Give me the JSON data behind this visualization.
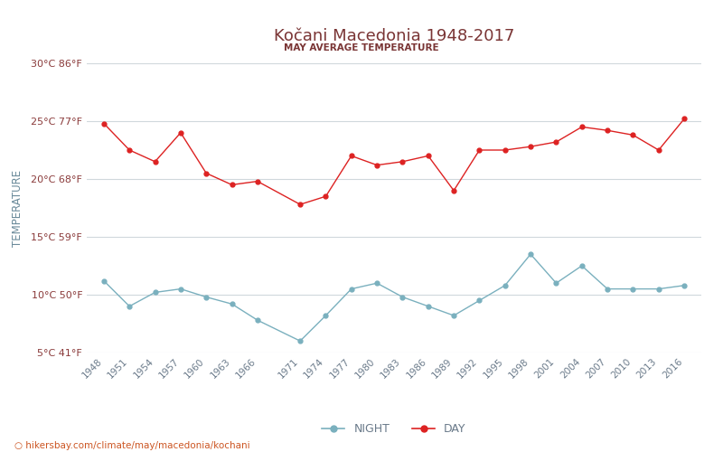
{
  "title": "Kočani Macedonia 1948-2017",
  "subtitle": "MAY AVERAGE TEMPERATURE",
  "xlabel_url": "hikersbay.com/climate/may/macedonia/kochani",
  "ylabel": "TEMPERATURE",
  "title_color": "#7a3535",
  "subtitle_color": "#7a3535",
  "ylabel_color": "#6a8a9a",
  "background_color": "#ffffff",
  "grid_color": "#d0d8dc",
  "day_color": "#dd2222",
  "night_color": "#7ab0be",
  "xtick_color": "#6a7a8a",
  "ytick_color": "#8a3a3a",
  "ylim_min": 5,
  "ylim_max": 30,
  "yticks_c": [
    5,
    10,
    15,
    20,
    25,
    30
  ],
  "yticks_f": [
    41,
    50,
    59,
    68,
    77,
    86
  ],
  "xtick_years": [
    1948,
    1951,
    1954,
    1957,
    1960,
    1963,
    1966,
    1971,
    1974,
    1977,
    1980,
    1983,
    1986,
    1989,
    1992,
    1995,
    1998,
    2001,
    2004,
    2007,
    2010,
    2013,
    2016
  ],
  "day_temps": [
    24.8,
    22.5,
    21.5,
    24.0,
    20.5,
    19.5,
    19.8,
    17.8,
    18.5,
    22.0,
    21.2,
    21.5,
    22.0,
    19.0,
    22.5,
    22.5,
    22.8,
    23.2,
    24.5,
    24.2,
    23.8,
    22.5,
    25.2
  ],
  "night_temps": [
    11.2,
    9.0,
    10.2,
    10.5,
    9.8,
    9.2,
    7.8,
    6.0,
    8.2,
    10.5,
    11.0,
    9.8,
    9.0,
    8.2,
    9.5,
    10.8,
    13.5,
    11.0,
    12.5,
    10.5,
    10.5,
    10.5,
    10.8
  ]
}
